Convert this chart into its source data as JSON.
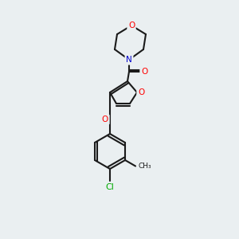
{
  "background_color": "#eaeff1",
  "bond_color": "#1a1a1a",
  "atom_colors": {
    "O": "#ff0000",
    "N": "#0000cc",
    "Cl": "#00aa00",
    "C": "#1a1a1a"
  },
  "font_size": 7.5,
  "lw": 1.5
}
